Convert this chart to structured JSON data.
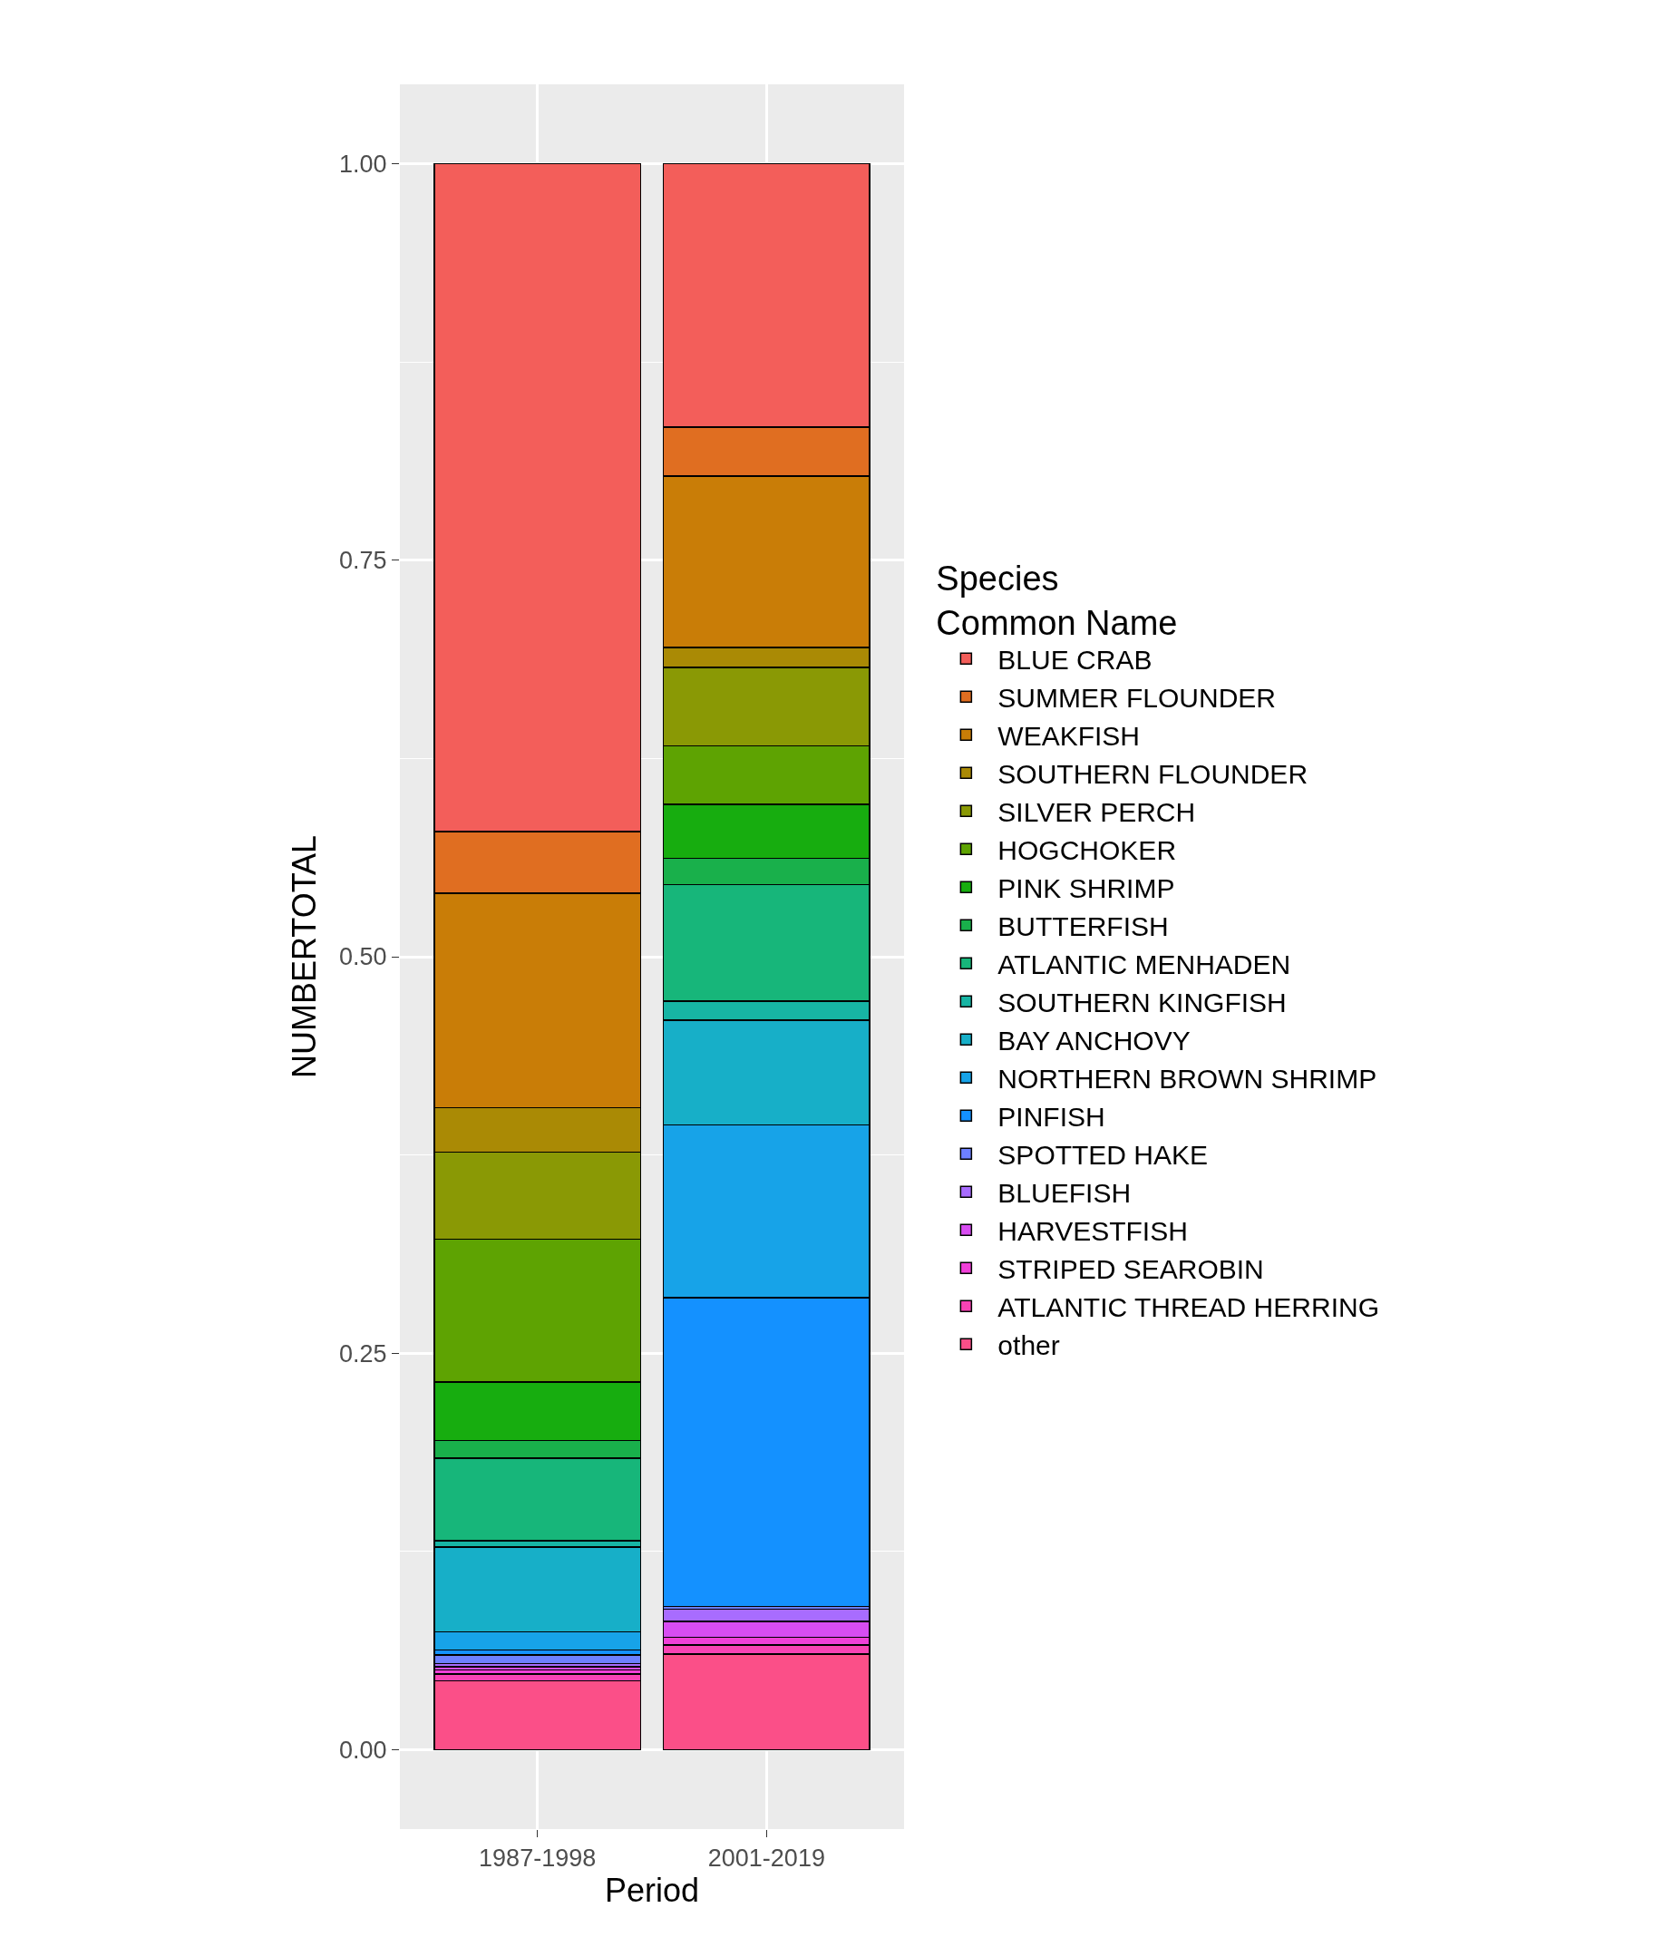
{
  "chart_data": {
    "type": "bar",
    "stacked": true,
    "xlabel": "Period",
    "ylabel": "NUMBERTOTAL",
    "legend_title": "Species\nCommon Name",
    "legend": "right",
    "grid": true,
    "categories": [
      "1987-1998",
      "2001-2019"
    ],
    "ylim": [
      -0.05,
      1.05
    ],
    "yticks": [
      {
        "value": 0,
        "label": "0.00"
      },
      {
        "value": 0.25,
        "label": "0.25"
      },
      {
        "value": 0.5,
        "label": "0.50"
      },
      {
        "value": 0.75,
        "label": "0.75"
      },
      {
        "value": 1,
        "label": "1.00"
      }
    ],
    "series": [
      {
        "name": "other",
        "color": "#fb4f88",
        "values": [
          0.0435,
          0.0604
        ]
      },
      {
        "name": "ATLANTIC THREAD HERRING",
        "color": "#f843b4",
        "values": [
          0.0043,
          0.0057
        ]
      },
      {
        "name": "STRIPED SEAROBIN",
        "color": "#f040d8",
        "values": [
          0.0026,
          0.0048
        ]
      },
      {
        "name": "HARVESTFISH",
        "color": "#d84df2",
        "values": [
          0.002,
          0.0101
        ]
      },
      {
        "name": "BLUEFISH",
        "color": "#a86cff",
        "values": [
          0.002,
          0.0076
        ]
      },
      {
        "name": "SPOTTED HAKE",
        "color": "#6d80ff",
        "values": [
          0.0055,
          0.0018
        ]
      },
      {
        "name": "PINFISH",
        "color": "#1491ff",
        "values": [
          0.003,
          0.1946
        ]
      },
      {
        "name": "NORTHERN BROWN SHRIMP",
        "color": "#17a3e8",
        "values": [
          0.0115,
          0.109
        ]
      },
      {
        "name": "BAY ANCHOVY",
        "color": "#17afc8",
        "values": [
          0.0535,
          0.066
        ]
      },
      {
        "name": "SOUTHERN KINGFISH",
        "color": "#17b5a4",
        "values": [
          0.004,
          0.012
        ]
      },
      {
        "name": "ATLANTIC MENHADEN",
        "color": "#17b67a",
        "values": [
          0.052,
          0.0735
        ]
      },
      {
        "name": "BUTTERFISH",
        "color": "#19b04b",
        "values": [
          0.011,
          0.0165
        ]
      },
      {
        "name": "PINK SHRIMP",
        "color": "#17ad0f",
        "values": [
          0.037,
          0.034
        ]
      },
      {
        "name": "HOGCHOKER",
        "color": "#5ea302",
        "values": [
          0.09,
          0.037
        ]
      },
      {
        "name": "SILVER PERCH",
        "color": "#8a9905",
        "values": [
          0.055,
          0.0495
        ]
      },
      {
        "name": "SOUTHERN FLOUNDER",
        "color": "#aa8a05",
        "values": [
          0.028,
          0.0125
        ]
      },
      {
        "name": "WEAKFISH",
        "color": "#c97d07",
        "values": [
          0.135,
          0.108
        ]
      },
      {
        "name": "SUMMER FLOUNDER",
        "color": "#e06e21",
        "values": [
          0.039,
          0.031
        ]
      },
      {
        "name": "BLUE CRAB",
        "color": "#f35e5a",
        "values": [
          0.421,
          0.166
        ]
      }
    ]
  }
}
